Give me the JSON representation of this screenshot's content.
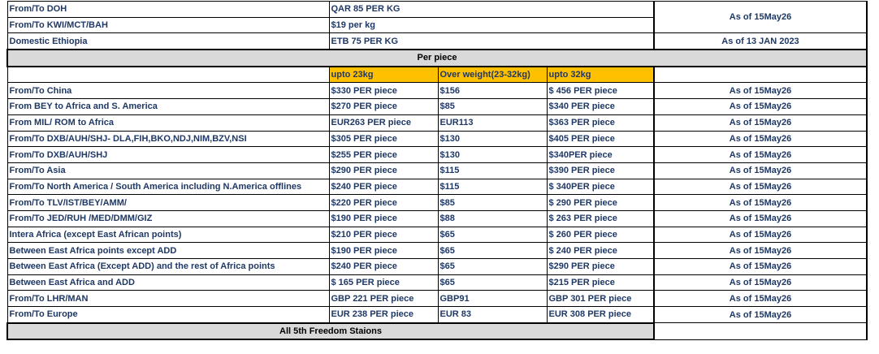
{
  "top": {
    "rows": [
      [
        "From/To DOH",
        "QAR 85 PER KG"
      ],
      [
        "From/To KWI/MCT/BAH",
        "$19 per kg"
      ],
      [
        "Domestic Ethiopia",
        "ETB 75 PER KG"
      ]
    ],
    "as_of": [
      "As of 15May26",
      "As of 13 JAN 2023"
    ]
  },
  "section_title": "Per piece",
  "headers": [
    "upto 23kg",
    "Over weight(23-32kg)",
    "upto 32kg"
  ],
  "rows": [
    [
      "From/To China",
      "$330 PER piece",
      "$156",
      "$ 456 PER piece",
      "As of 15May26"
    ],
    [
      "From BEY to Africa and S. America",
      "$270 PER piece",
      "$85",
      "$340 PER piece",
      "As of 15May26"
    ],
    [
      "From MIL/ ROM to Africa",
      "EUR263 PER piece",
      "EUR113",
      "$363 PER piece",
      "As of 15May26"
    ],
    [
      "From/To DXB/AUH/SHJ- DLA,FIH,BKO,NDJ,NIM,BZV,NSI",
      "$305 PER piece",
      "$130",
      "$405 PER piece",
      "As of 15May26"
    ],
    [
      "From/To DXB/AUH/SHJ",
      "$255 PER piece",
      "$130",
      "$340PER piece",
      "As of 15May26"
    ],
    [
      "From/To Asia",
      "$290 PER piece",
      "$115",
      "$390 PER piece",
      "As of 15May26"
    ],
    [
      "From/To North America / South America including N.America offlines",
      "$240 PER piece",
      "$115",
      "$ 340PER piece",
      "As of 15May26"
    ],
    [
      "From/To TLV/IST/BEY/AMM/",
      "$220 PER piece",
      "$85",
      "$ 290 PER piece",
      "As of 15May26"
    ],
    [
      "From/To JED/RUH /MED/DMM/GIZ",
      "$190 PER piece",
      "$88",
      "$ 263 PER piece",
      "As of 15May26"
    ],
    [
      "Intera Africa (except East African points)",
      "$210 PER piece",
      "$65",
      "$ 260 PER piece",
      "As of 15May26"
    ],
    [
      "Between East Africa points except ADD",
      "$190 PER piece",
      "$65",
      "$ 240 PER piece",
      "As of 15May26"
    ],
    [
      "Between East Africa (Except ADD) and the rest of Africa points",
      "$240 PER piece",
      "$65",
      "$290 PER piece",
      "As of 15May26"
    ],
    [
      "Between East Africa and ADD",
      "$ 165 PER piece",
      "$65",
      "$215 PER piece",
      "As of 15May26"
    ],
    [
      "From/To LHR/MAN",
      "GBP 221 PER piece",
      "GBP91",
      "GBP 301 PER piece",
      "As of 15May26"
    ],
    [
      "From/To Europe",
      "EUR 238 PER piece",
      "EUR 83",
      "EUR 308 PER piece",
      "As of 15May26"
    ]
  ],
  "footer": "All 5th Freedom Staions"
}
